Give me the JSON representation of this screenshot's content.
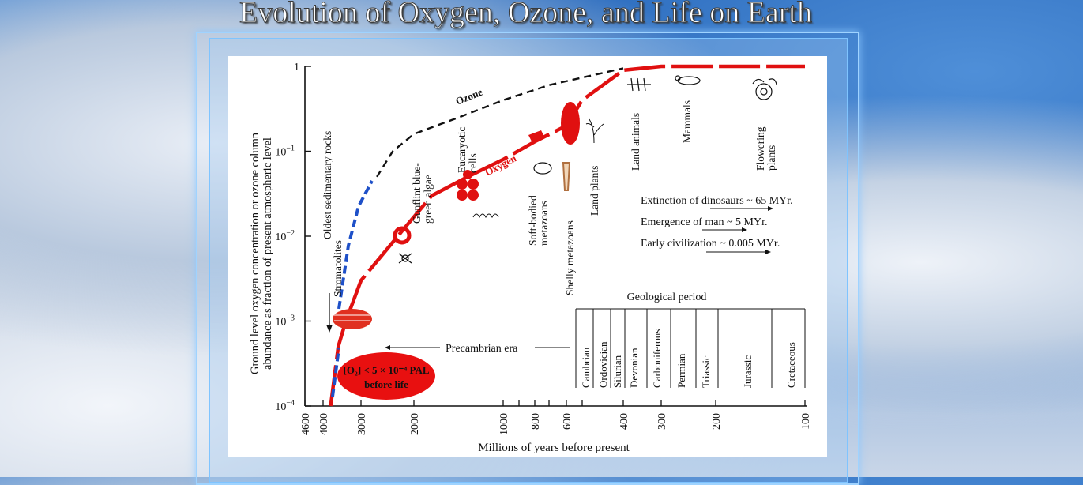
{
  "header": {
    "title": "Evolution of Oxygen, Ozone, and Life on Earth"
  },
  "chart_data": {
    "type": "line",
    "xlabel": "Millions of years before present",
    "ylabel_line1": "Ground level oxygen concentration or ozone column",
    "ylabel_line2": "abundance as fraction of present atmospheric level",
    "x_tick_labels": [
      "4600",
      "4000",
      "3000",
      "2000",
      "1000",
      "800",
      "600",
      "400",
      "300",
      "200",
      "100"
    ],
    "y_tick_labels": [
      {
        "base": "10",
        "exp": "−4"
      },
      {
        "base": "10",
        "exp": "−3"
      },
      {
        "base": "10",
        "exp": "−2"
      },
      {
        "base": "10",
        "exp": "−1"
      },
      {
        "base": "1",
        "exp": ""
      }
    ],
    "ylim": [
      0.0001,
      1
    ],
    "y_scale": "log",
    "series": [
      {
        "name": "Ozone",
        "color": "#111111",
        "style": "dashed",
        "x": [
          2700,
          2400,
          2000,
          1500,
          1000,
          700,
          400
        ],
        "y": [
          0.05,
          0.1,
          0.16,
          0.25,
          0.4,
          0.6,
          0.95
        ]
      },
      {
        "name": "Oxygen",
        "color": "#e01010",
        "style": "solid",
        "x": [
          3800,
          3600,
          3400,
          3000,
          2600,
          2200,
          1800,
          1400,
          1000,
          800,
          600,
          500,
          400,
          300,
          200,
          100
        ],
        "y": [
          0.0001,
          0.0005,
          0.001,
          0.003,
          0.006,
          0.012,
          0.03,
          0.05,
          0.08,
          0.13,
          0.2,
          0.4,
          0.9,
          1,
          1,
          1
        ]
      }
    ],
    "life_labels": [
      "Oldest sedimentary rocks",
      "Stromatolites",
      "Gunflint blue-",
      "green algae",
      "Eucaryotic",
      "cells",
      "Soft-bodied",
      "metazoans",
      "Shelly metazoans",
      "Land plants",
      "Land animals",
      "Mammals",
      "Flowering",
      "plants"
    ],
    "annotations": {
      "extinction": "Extinction of dinosaurs ~ 65 MYr.",
      "emergence": "Emergence of man ~ 5 MYr.",
      "civilization": "Early civilization ~ 0.005 MYr.",
      "precambrian": "Precambrian era",
      "geological_period": "Geological period",
      "o2_note_line1": "[O₂] < 5 × 10⁻⁴ PAL",
      "o2_note_line2": "before life"
    },
    "periods": [
      "Cambrian",
      "Ordovician",
      "Silurian",
      "Devonian",
      "Carboniferous",
      "Permian",
      "Triassic",
      "Jurassic",
      "Cretaceous"
    ],
    "colors": {
      "oxygen": "#e01010",
      "ozone": "#111111",
      "early_oxygen": "#1e50c8"
    }
  }
}
